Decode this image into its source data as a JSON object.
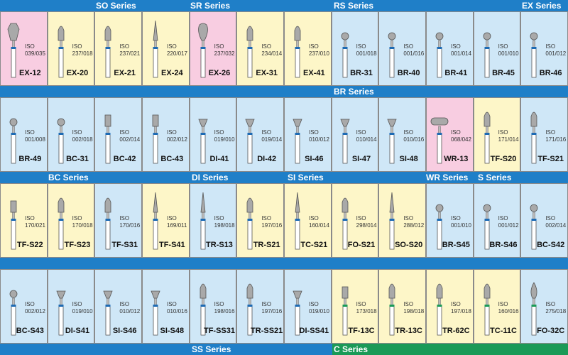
{
  "colors": {
    "blue": "#cfe7f7",
    "yellow": "#fdf6c8",
    "pink": "#f8cde1",
    "band_blue": "#1f7fc8",
    "band_green": "#1a9a57"
  },
  "series_labels": {
    "so": "SO Series",
    "sr": "SR Series",
    "rs": "RS Series",
    "ex": "EX Series",
    "br": "BR Series",
    "bc": "BC Series",
    "di": "DI Series",
    "si": "SI Series",
    "wr": "WR Series",
    "s": "S Series",
    "ss": "SS Series",
    "c": "C Series"
  },
  "rows": [
    [
      {
        "code": "EX-12",
        "iso": "ISO",
        "size": "039/035",
        "color": "pink",
        "shape": "hex",
        "ring": "blue"
      },
      {
        "code": "EX-20",
        "iso": "ISO",
        "size": "237/018",
        "color": "yellow",
        "shape": "bullet",
        "ring": "blue"
      },
      {
        "code": "EX-21",
        "iso": "ISO",
        "size": "237/021",
        "color": "yellow",
        "shape": "bullet",
        "ring": "blue"
      },
      {
        "code": "EX-24",
        "iso": "ISO",
        "size": "220/017",
        "color": "yellow",
        "shape": "needle",
        "ring": "blue"
      },
      {
        "code": "EX-26",
        "iso": "ISO",
        "size": "237/032",
        "color": "pink",
        "shape": "pear",
        "ring": "blue"
      },
      {
        "code": "EX-31",
        "iso": "ISO",
        "size": "234/014",
        "color": "yellow",
        "shape": "bullet",
        "ring": "blue"
      },
      {
        "code": "EX-41",
        "iso": "ISO",
        "size": "237/010",
        "color": "yellow",
        "shape": "bullet",
        "ring": "blue"
      },
      {
        "code": "BR-31",
        "iso": "ISO",
        "size": "001/018",
        "color": "blue",
        "shape": "ball",
        "ring": "blue"
      },
      {
        "code": "BR-40",
        "iso": "ISO",
        "size": "001/016",
        "color": "blue",
        "shape": "ball",
        "ring": "blue"
      },
      {
        "code": "BR-41",
        "iso": "ISO",
        "size": "001/014",
        "color": "blue",
        "shape": "ball",
        "ring": "blue"
      },
      {
        "code": "BR-45",
        "iso": "ISO",
        "size": "001/010",
        "color": "blue",
        "shape": "ball",
        "ring": "blue"
      },
      {
        "code": "BR-46",
        "iso": "ISO",
        "size": "001/012",
        "color": "blue",
        "shape": "ball",
        "ring": "blue"
      }
    ],
    [
      {
        "code": "BR-49",
        "iso": "ISO",
        "size": "001/008",
        "color": "blue",
        "shape": "ball",
        "ring": "blue"
      },
      {
        "code": "BC-31",
        "iso": "ISO",
        "size": "002/018",
        "color": "blue",
        "shape": "ball",
        "ring": "blue"
      },
      {
        "code": "BC-42",
        "iso": "ISO",
        "size": "002/014",
        "color": "blue",
        "shape": "cylinder",
        "ring": "blue"
      },
      {
        "code": "BC-43",
        "iso": "ISO",
        "size": "002/012",
        "color": "blue",
        "shape": "cylinder",
        "ring": "blue"
      },
      {
        "code": "DI-41",
        "iso": "ISO",
        "size": "019/010",
        "color": "blue",
        "shape": "cone",
        "ring": "blue"
      },
      {
        "code": "DI-42",
        "iso": "ISO",
        "size": "019/014",
        "color": "blue",
        "shape": "cone",
        "ring": "blue"
      },
      {
        "code": "SI-46",
        "iso": "ISO",
        "size": "010/012",
        "color": "blue",
        "shape": "cone",
        "ring": "blue"
      },
      {
        "code": "SI-47",
        "iso": "ISO",
        "size": "010/014",
        "color": "blue",
        "shape": "cone",
        "ring": "blue"
      },
      {
        "code": "SI-48",
        "iso": "ISO",
        "size": "010/016",
        "color": "blue",
        "shape": "cone",
        "ring": "blue"
      },
      {
        "code": "WR-13",
        "iso": "ISO",
        "size": "068/042",
        "color": "pink",
        "shape": "wheel",
        "ring": "blue"
      },
      {
        "code": "TF-S20",
        "iso": "ISO",
        "size": "171/014",
        "color": "yellow",
        "shape": "bullet",
        "ring": "blue"
      },
      {
        "code": "TF-S21",
        "iso": "ISO",
        "size": "171/016",
        "color": "blue",
        "shape": "bullet",
        "ring": "blue"
      }
    ],
    [
      {
        "code": "TF-S22",
        "iso": "ISO",
        "size": "170/021",
        "color": "yellow",
        "shape": "cylinder",
        "ring": "blue"
      },
      {
        "code": "TF-S23",
        "iso": "ISO",
        "size": "170/018",
        "color": "yellow",
        "shape": "bullet",
        "ring": "blue"
      },
      {
        "code": "TF-S31",
        "iso": "ISO",
        "size": "170/016",
        "color": "blue",
        "shape": "bullet",
        "ring": "blue"
      },
      {
        "code": "TF-S41",
        "iso": "ISO",
        "size": "169/011",
        "color": "yellow",
        "shape": "needle",
        "ring": "blue"
      },
      {
        "code": "TR-S13",
        "iso": "ISO",
        "size": "198/018",
        "color": "blue",
        "shape": "needle",
        "ring": "blue"
      },
      {
        "code": "TR-S21",
        "iso": "ISO",
        "size": "197/016",
        "color": "yellow",
        "shape": "bullet",
        "ring": "blue"
      },
      {
        "code": "TC-S21",
        "iso": "ISO",
        "size": "160/014",
        "color": "yellow",
        "shape": "needle",
        "ring": "blue"
      },
      {
        "code": "FO-S21",
        "iso": "ISO",
        "size": "298/014",
        "color": "yellow",
        "shape": "bullet",
        "ring": "blue"
      },
      {
        "code": "SO-S20",
        "iso": "ISO",
        "size": "288/012",
        "color": "yellow",
        "shape": "needle",
        "ring": "blue"
      },
      {
        "code": "BR-S45",
        "iso": "ISO",
        "size": "001/010",
        "color": "blue",
        "shape": "ball",
        "ring": "blue"
      },
      {
        "code": "BR-S46",
        "iso": "ISO",
        "size": "001/012",
        "color": "blue",
        "shape": "ball",
        "ring": "blue"
      },
      {
        "code": "BC-S42",
        "iso": "ISO",
        "size": "002/014",
        "color": "blue",
        "shape": "ball",
        "ring": "blue"
      }
    ],
    [
      {
        "code": "BC-S43",
        "iso": "ISO",
        "size": "002/012",
        "color": "blue",
        "shape": "ball",
        "ring": "blue"
      },
      {
        "code": "DI-S41",
        "iso": "ISO",
        "size": "019/010",
        "color": "blue",
        "shape": "cone",
        "ring": "blue"
      },
      {
        "code": "SI-S46",
        "iso": "ISO",
        "size": "010/012",
        "color": "blue",
        "shape": "cone",
        "ring": "blue"
      },
      {
        "code": "SI-S48",
        "iso": "ISO",
        "size": "010/016",
        "color": "blue",
        "shape": "cone",
        "ring": "blue"
      },
      {
        "code": "TF-SS31",
        "iso": "ISO",
        "size": "198/016",
        "color": "blue",
        "shape": "bullet",
        "ring": "blue"
      },
      {
        "code": "TR-SS21",
        "iso": "ISO",
        "size": "197/016",
        "color": "blue",
        "shape": "bullet",
        "ring": "blue"
      },
      {
        "code": "DI-SS41",
        "iso": "ISO",
        "size": "019/010",
        "color": "blue",
        "shape": "cone",
        "ring": "blue"
      },
      {
        "code": "TF-13C",
        "iso": "ISO",
        "size": "173/018",
        "color": "yellow",
        "shape": "cylinder",
        "ring": "green"
      },
      {
        "code": "TR-13C",
        "iso": "ISO",
        "size": "198/018",
        "color": "yellow",
        "shape": "bullet",
        "ring": "green"
      },
      {
        "code": "TR-62C",
        "iso": "ISO",
        "size": "197/018",
        "color": "yellow",
        "shape": "bullet",
        "ring": "green"
      },
      {
        "code": "TC-11C",
        "iso": "ISO",
        "size": "160/016",
        "color": "yellow",
        "shape": "bullet",
        "ring": "green"
      },
      {
        "code": "FO-32C",
        "iso": "ISO",
        "size": "275/018",
        "color": "blue",
        "shape": "flame",
        "ring": "green"
      }
    ]
  ]
}
